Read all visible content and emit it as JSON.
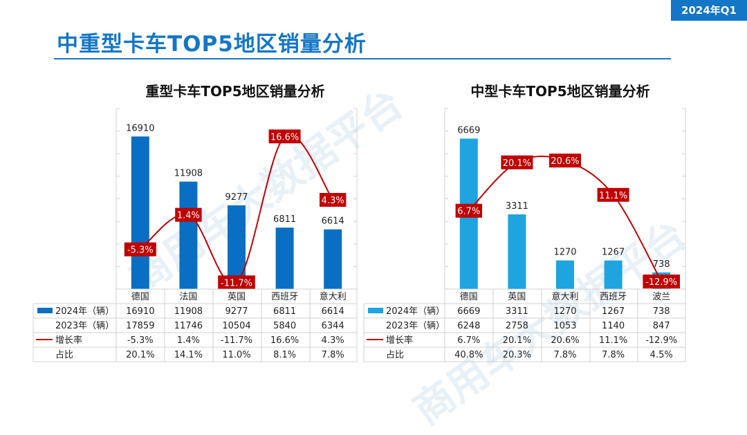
{
  "badge": "2024年Q1",
  "page_title": "中重型卡车TOP5地区销量分析",
  "colors": {
    "accent": "#1476c6",
    "heavy_bar": "#0a6fc2",
    "medium_bar": "#1ea4de",
    "growth": "#c00000"
  },
  "row_labels": {
    "y2024": "2024年（辆）",
    "y2023": "2023年（辆）",
    "growth": "增长率",
    "share": "占比"
  },
  "chart_data": [
    {
      "type": "bar",
      "title": "重型卡车TOP5地区销量分析",
      "categories": [
        "德国",
        "法国",
        "英国",
        "西班牙",
        "意大利"
      ],
      "series": [
        {
          "name": "2024年（辆）",
          "values": [
            16910,
            11908,
            9277,
            6811,
            6614
          ]
        },
        {
          "name": "2023年（辆）",
          "values": [
            17859,
            11746,
            10504,
            5840,
            6344
          ]
        }
      ],
      "growth": {
        "name": "增长率",
        "values": [
          -5.3,
          1.4,
          -11.7,
          16.6,
          4.3
        ],
        "labels": [
          "-5.3%",
          "1.4%",
          "-11.7%",
          "16.6%",
          "4.3%"
        ]
      },
      "share": {
        "name": "占比",
        "labels": [
          "20.1%",
          "14.1%",
          "11.0%",
          "8.1%",
          "7.8%"
        ]
      },
      "ylim": [
        0,
        20000
      ],
      "growth_lim": [
        -13,
        22
      ]
    },
    {
      "type": "bar",
      "title": "中型卡车TOP5地区销量分析",
      "categories": [
        "德国",
        "英国",
        "意大利",
        "西班牙",
        "波兰"
      ],
      "series": [
        {
          "name": "2024年（辆）",
          "values": [
            6669,
            3311,
            1270,
            1267,
            738
          ]
        },
        {
          "name": "2023年（辆）",
          "values": [
            6248,
            2758,
            1053,
            1140,
            847
          ]
        }
      ],
      "growth": {
        "name": "增长率",
        "values": [
          6.7,
          20.1,
          20.6,
          11.1,
          -12.9
        ],
        "labels": [
          "6.7%",
          "20.1%",
          "20.6%",
          "11.1%",
          "-12.9%"
        ]
      },
      "share": {
        "name": "占比",
        "labels": [
          "40.8%",
          "20.3%",
          "7.8%",
          "7.8%",
          "4.5%"
        ]
      },
      "ylim": [
        0,
        8000
      ],
      "growth_lim": [
        -15,
        35
      ]
    }
  ]
}
